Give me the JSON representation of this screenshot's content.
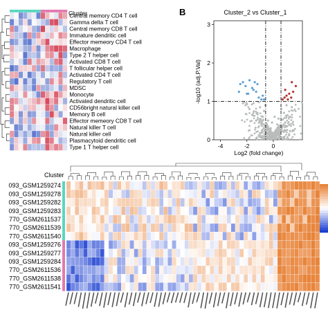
{
  "panel_a": {
    "cluster_label": "Cluster",
    "rows": [
      "Central memory CD4 T cell",
      "Gamma delta T cell",
      "Central memory CD8 T cell",
      "Immature dendritic cell",
      "Effector memeory CD4 T cell",
      "Macrophage",
      "Type 2 T helper cell",
      "Activated CD8 T cell",
      "T follicular helper cell",
      "Activated CD4 T cell",
      "Regulatory T cell",
      "MDSC",
      "Monocyte",
      "Activated dendritic cell",
      "CD56bright natural killer cell",
      "Memory B cell",
      "Effector memeory CD8 T cell",
      "Natural killer T cell",
      "Natural killer cell",
      "Plasmacytoid dendritic cell",
      "Type 1 T helper cell"
    ]
  },
  "panel_b": {
    "letter": "B"
  },
  "panel_c": {
    "cluster_label": "Cluster",
    "rows": [
      "093_GSM1259274",
      "093_GSM1259278",
      "093_GSM1259282",
      "093_GSM1259283",
      "770_GSM2611537",
      "770_GSM2611539",
      "770_GSM2611540",
      "093_GSM1259276",
      "093_GSM1259277",
      "093_GSM1259284",
      "770_GSM2611536",
      "770_GSM2611538",
      "770_GSM2611541"
    ]
  },
  "colors": {
    "cluster1": "#5ad6c0",
    "cluster2": "#e278b0",
    "down": "#1b3fd1",
    "up": "#e8843a",
    "volcano_grey": "#b8bcba",
    "volcano_blue": "#5c9fd6",
    "volcano_red": "#b3322c"
  },
  "chart_data": [
    {
      "type": "heatmap",
      "rows": 21,
      "columns": 13,
      "column_clusters": [
        "Cluster_1",
        "Cluster_2"
      ]
    },
    {
      "type": "scatter",
      "title": "Cluster_2 vs Cluster_1",
      "xlabel": "Log2 (fold change)",
      "ylabel": "-log10 (adj.P.Val)",
      "xlim": [
        -4.5,
        2.2
      ],
      "ylim": [
        0,
        3.1
      ],
      "xticks": [
        -4,
        -2,
        0
      ],
      "yticks": [
        0,
        1,
        2,
        3
      ],
      "thresholds": {
        "y": 1,
        "x": [
          -0.58,
          0.58
        ]
      },
      "series": [
        {
          "name": "down",
          "color": "#5c9fd6",
          "points": [
            [
              -2.5,
              1.45
            ],
            [
              -2.3,
              1.5
            ],
            [
              -2.1,
              1.4
            ],
            [
              -1.8,
              1.55
            ],
            [
              -1.6,
              1.35
            ],
            [
              -1.5,
              1.3
            ],
            [
              -1.3,
              1.25
            ],
            [
              -1.2,
              1.45
            ],
            [
              -1.9,
              1.2
            ],
            [
              -2.6,
              1.25
            ],
            [
              -1.1,
              1.1
            ],
            [
              -0.9,
              1.05
            ],
            [
              -0.8,
              1.15
            ],
            [
              -1.4,
              1.5
            ],
            [
              -2.0,
              1.2
            ],
            [
              -0.7,
              1.05
            ]
          ]
        },
        {
          "name": "up",
          "color": "#b3322c",
          "points": [
            [
              0.7,
              1.05
            ],
            [
              0.85,
              1.1
            ],
            [
              1.0,
              1.15
            ],
            [
              1.2,
              1.2
            ],
            [
              1.35,
              1.1
            ],
            [
              1.5,
              1.25
            ],
            [
              1.4,
              1.5
            ],
            [
              1.7,
              1.4
            ],
            [
              0.9,
              1.3
            ],
            [
              1.1,
              1.05
            ]
          ]
        },
        {
          "name": "ns",
          "color": "#b8bcba",
          "points": [
            [
              -2.1,
              0.9
            ],
            [
              -1.8,
              0.8
            ],
            [
              -1.5,
              0.95
            ],
            [
              -1.2,
              0.7
            ],
            [
              -1.0,
              0.85
            ],
            [
              -0.8,
              0.6
            ],
            [
              -0.6,
              0.9
            ],
            [
              -0.4,
              0.5
            ],
            [
              -0.2,
              0.3
            ],
            [
              0.0,
              0.1
            ],
            [
              0.2,
              0.25
            ],
            [
              0.4,
              0.55
            ],
            [
              0.6,
              0.8
            ],
            [
              0.8,
              0.7
            ],
            [
              1.0,
              0.9
            ],
            [
              1.2,
              0.6
            ],
            [
              -1.3,
              0.5
            ],
            [
              -0.9,
              0.4
            ],
            [
              -0.5,
              0.3
            ],
            [
              -0.3,
              0.15
            ],
            [
              0.3,
              0.4
            ],
            [
              0.5,
              0.2
            ],
            [
              0.1,
              0.6
            ],
            [
              -0.7,
              0.75
            ],
            [
              -1.6,
              0.65
            ],
            [
              -2.3,
              0.95
            ],
            [
              1.4,
              0.85
            ],
            [
              0.9,
              0.45
            ],
            [
              -0.1,
              0.45
            ],
            [
              -1.1,
              0.98
            ]
          ]
        }
      ]
    },
    {
      "type": "heatmap",
      "rows": 13,
      "columns": 60,
      "row_clusters": [
        "Cluster_1",
        "Cluster_2"
      ]
    }
  ]
}
